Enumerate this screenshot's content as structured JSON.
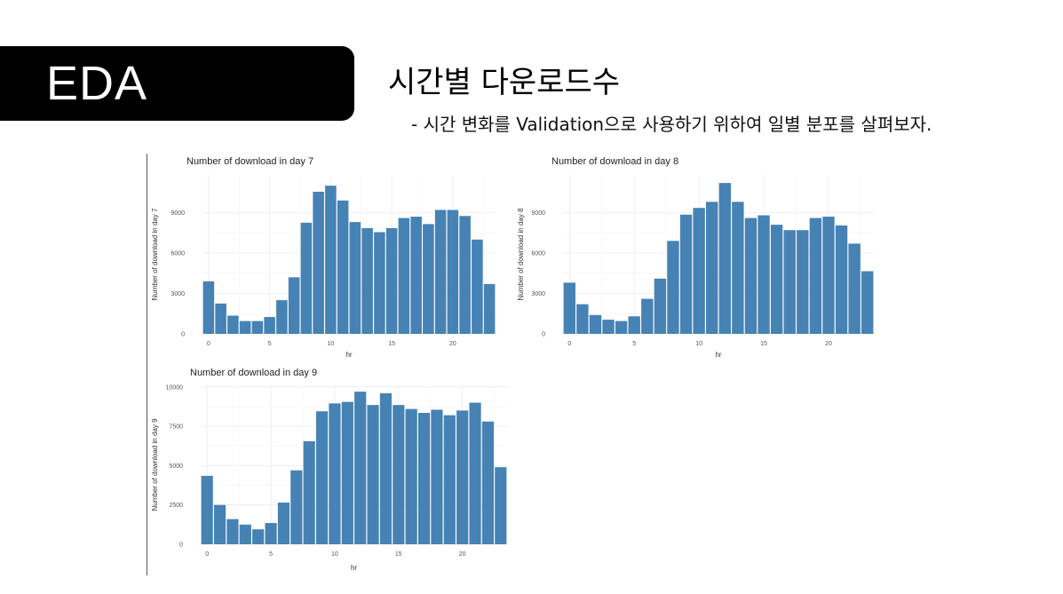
{
  "header": {
    "badge": "EDA",
    "title": "시간별 다운로드수",
    "subtitle": "- 시간 변화를 Validation으로 사용하기 위하여 일별 분포를 살펴보자."
  },
  "chart_data": [
    {
      "type": "bar",
      "title": "Number of download in day 7",
      "xlabel": "hr",
      "ylabel": "Number of download in day 7",
      "x": [
        0,
        1,
        2,
        3,
        4,
        5,
        6,
        7,
        8,
        9,
        10,
        11,
        12,
        13,
        14,
        15,
        16,
        17,
        18,
        19,
        20,
        21,
        22,
        23
      ],
      "values": [
        3900,
        2250,
        1350,
        950,
        950,
        1250,
        2500,
        4200,
        8250,
        10550,
        11000,
        9900,
        8300,
        7850,
        7550,
        7850,
        8600,
        8700,
        8150,
        9200,
        9200,
        8750,
        7000,
        3700
      ],
      "xticks": [
        0,
        5,
        10,
        15,
        20
      ],
      "yticks": [
        0,
        3000,
        6000,
        9000
      ],
      "ytick_labels": [
        "0",
        "3000",
        "6000",
        "9000"
      ],
      "xlim": [
        -0.5,
        23.5
      ],
      "ylim": [
        0,
        11800
      ],
      "bar_color": "#4682b4",
      "grid": true
    },
    {
      "type": "bar",
      "title": "Number of download in day 8",
      "xlabel": "hr",
      "ylabel": "Number of download in day 8",
      "x": [
        0,
        1,
        2,
        3,
        4,
        5,
        6,
        7,
        8,
        9,
        10,
        11,
        12,
        13,
        14,
        15,
        16,
        17,
        18,
        19,
        20,
        21,
        22,
        23
      ],
      "values": [
        3800,
        2200,
        1400,
        1050,
        950,
        1300,
        2600,
        4100,
        6900,
        8850,
        9350,
        9800,
        11200,
        9800,
        8600,
        8800,
        8100,
        7700,
        7700,
        8600,
        8700,
        8050,
        6700,
        4650
      ],
      "xticks": [
        0,
        5,
        10,
        15,
        20
      ],
      "yticks": [
        0,
        3000,
        6000,
        9000
      ],
      "ytick_labels": [
        "0",
        "3000",
        "6000",
        "9000"
      ],
      "xlim": [
        -0.5,
        23.5
      ],
      "ylim": [
        0,
        11800
      ],
      "bar_color": "#4682b4",
      "grid": true
    },
    {
      "type": "bar",
      "title": "Number of download in day 9",
      "xlabel": "hr",
      "ylabel": "Number of download in day 9",
      "x": [
        0,
        1,
        2,
        3,
        4,
        5,
        6,
        7,
        8,
        9,
        10,
        11,
        12,
        13,
        14,
        15,
        16,
        17,
        18,
        19,
        20,
        21,
        22,
        23
      ],
      "values": [
        4350,
        2500,
        1600,
        1250,
        950,
        1350,
        2650,
        4700,
        6550,
        8450,
        8950,
        9050,
        9700,
        8850,
        9600,
        8850,
        8600,
        8350,
        8550,
        8200,
        8500,
        9000,
        7800,
        4900
      ],
      "xticks": [
        0,
        5,
        10,
        15,
        20
      ],
      "yticks": [
        0,
        2500,
        5000,
        7500,
        10000
      ],
      "ytick_labels": [
        "0",
        "2500",
        "5000",
        "7500",
        "10000"
      ],
      "xlim": [
        -0.5,
        23.5
      ],
      "ylim": [
        0,
        10100
      ],
      "bar_color": "#4682b4",
      "grid": true
    }
  ]
}
